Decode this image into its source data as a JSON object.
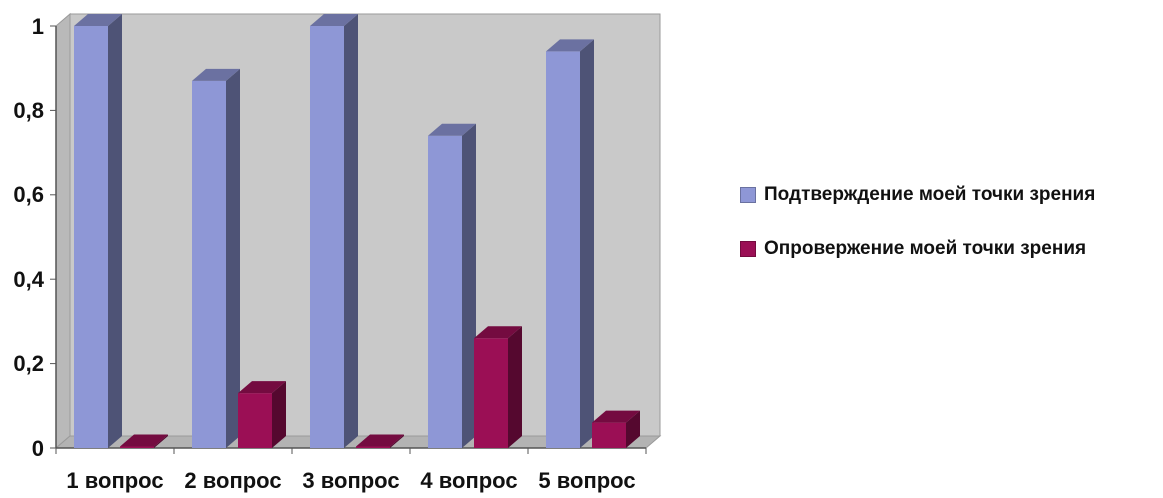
{
  "chart_data": {
    "type": "bar",
    "categories": [
      "1 вопрос",
      "2 вопрос",
      "3 вопрос",
      "4 вопрос",
      "5 вопрос"
    ],
    "series": [
      {
        "name": "Подтверждение моей точки зрения",
        "values": [
          1.0,
          0.87,
          1.0,
          0.74,
          0.94
        ],
        "color": "#8e97d6"
      },
      {
        "name": "Опровержение моей точки зрения",
        "values": [
          0.0,
          0.13,
          0.0,
          0.26,
          0.06
        ],
        "color": "#9b0f55"
      }
    ],
    "ylim": [
      0,
      1
    ],
    "yticks": [
      "0",
      "0,2",
      "0,4",
      "0,6",
      "0,8",
      "1"
    ],
    "grid": false,
    "legend_position": "right",
    "style": "3d-column",
    "wall_color": "#c9c9c9"
  }
}
